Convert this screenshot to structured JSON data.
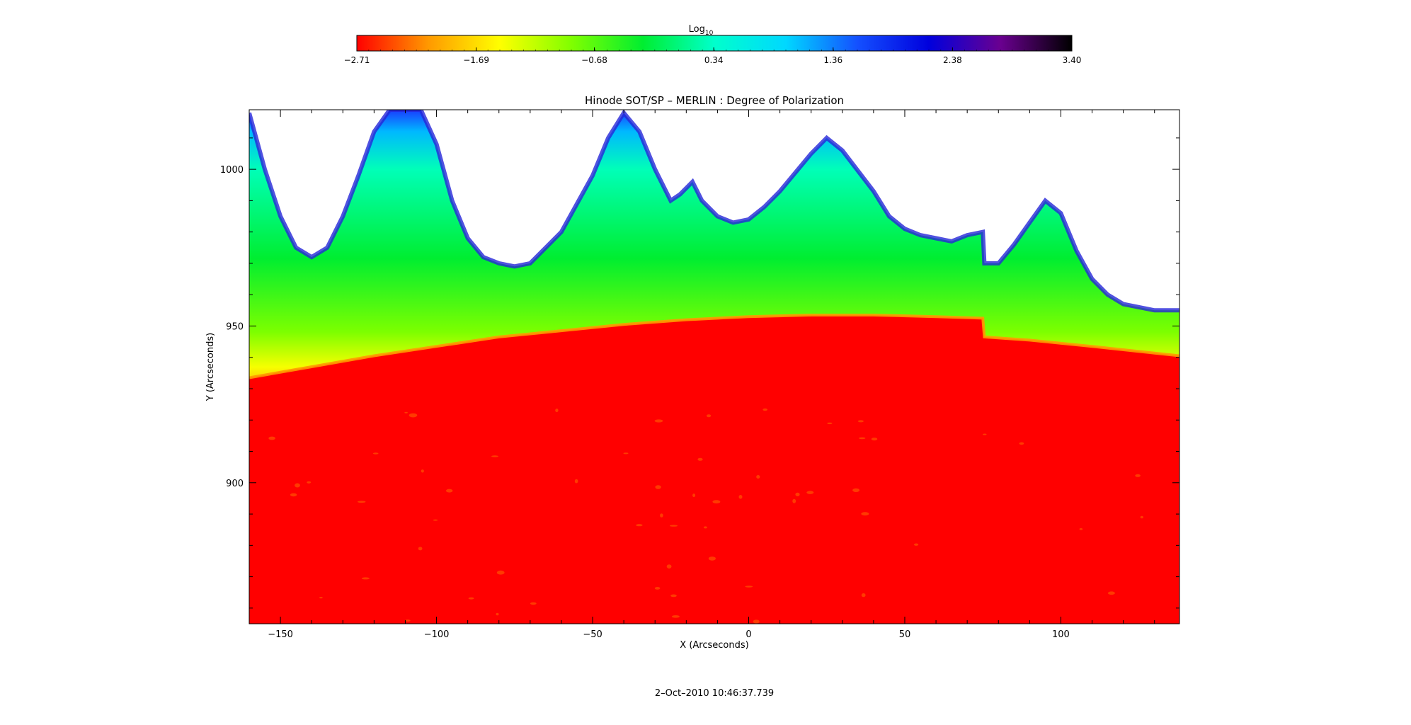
{
  "chart_data": {
    "type": "heatmap",
    "title": "Hinode SOT/SP – MERLIN : Degree of Polarization",
    "xlabel": "X (Arcseconds)",
    "ylabel": "Y (Arcseconds)",
    "timestamp": "2–Oct–2010 10:46:37.739",
    "xlim": [
      -160,
      138
    ],
    "ylim": [
      855,
      1019
    ],
    "x_ticks": [
      "−150",
      "−100",
      "−50",
      "0",
      "50",
      "100"
    ],
    "x_tick_values": [
      -150,
      -100,
      -50,
      0,
      50,
      100
    ],
    "y_ticks": [
      "900",
      "950",
      "1000"
    ],
    "y_tick_values": [
      900,
      950,
      1000
    ],
    "colorbar": {
      "label_base": "Log",
      "label_sub": "10",
      "range": [
        -2.71,
        3.4
      ],
      "tick_labels": [
        "−2.71",
        "−1.69",
        "−0.68",
        "0.34",
        "1.36",
        "2.38",
        "3.40"
      ],
      "tick_values": [
        -2.71,
        -1.69,
        -0.68,
        0.34,
        1.36,
        2.38,
        3.4
      ],
      "colors": [
        "#ff0000",
        "#ff9900",
        "#ffff00",
        "#80ff00",
        "#00ee30",
        "#00ffcc",
        "#00d8ff",
        "#1450ff",
        "#0000dd",
        "#6a0090",
        "#000000"
      ]
    },
    "limb": {
      "x": [
        -160,
        -140,
        -120,
        -100,
        -80,
        -60,
        -40,
        -20,
        0,
        20,
        40,
        60,
        75,
        75.5,
        90,
        110,
        138
      ],
      "y": [
        933.5,
        937,
        940.5,
        943.5,
        946.5,
        948.5,
        950.5,
        952,
        953,
        953.5,
        953.5,
        953,
        952.5,
        946.5,
        945.5,
        943.5,
        940.5
      ]
    },
    "emission_top": {
      "x": [
        -160,
        -155,
        -150,
        -145,
        -140,
        -135,
        -130,
        -125,
        -120,
        -115,
        -110,
        -105,
        -100,
        -95,
        -90,
        -85,
        -80,
        -75,
        -70,
        -60,
        -50,
        -45,
        -40,
        -35,
        -30,
        -25,
        -22,
        -18,
        -15,
        -10,
        -5,
        0,
        5,
        10,
        20,
        25,
        30,
        40,
        45,
        50,
        55,
        60,
        65,
        70,
        75,
        75.5,
        80,
        85,
        90,
        95,
        100,
        105,
        110,
        115,
        120,
        130,
        138
      ],
      "y": [
        1018,
        1000,
        985,
        975,
        972,
        975,
        985,
        998,
        1012,
        1019,
        1019,
        1019,
        1008,
        990,
        978,
        972,
        970,
        969,
        970,
        980,
        998,
        1010,
        1018,
        1012,
        1000,
        990,
        992,
        996,
        990,
        985,
        983,
        984,
        988,
        993,
        1005,
        1010,
        1006,
        993,
        985,
        981,
        979,
        978,
        977,
        979,
        980,
        970,
        970,
        976,
        983,
        990,
        986,
        974,
        965,
        960,
        957,
        955,
        955
      ]
    }
  }
}
